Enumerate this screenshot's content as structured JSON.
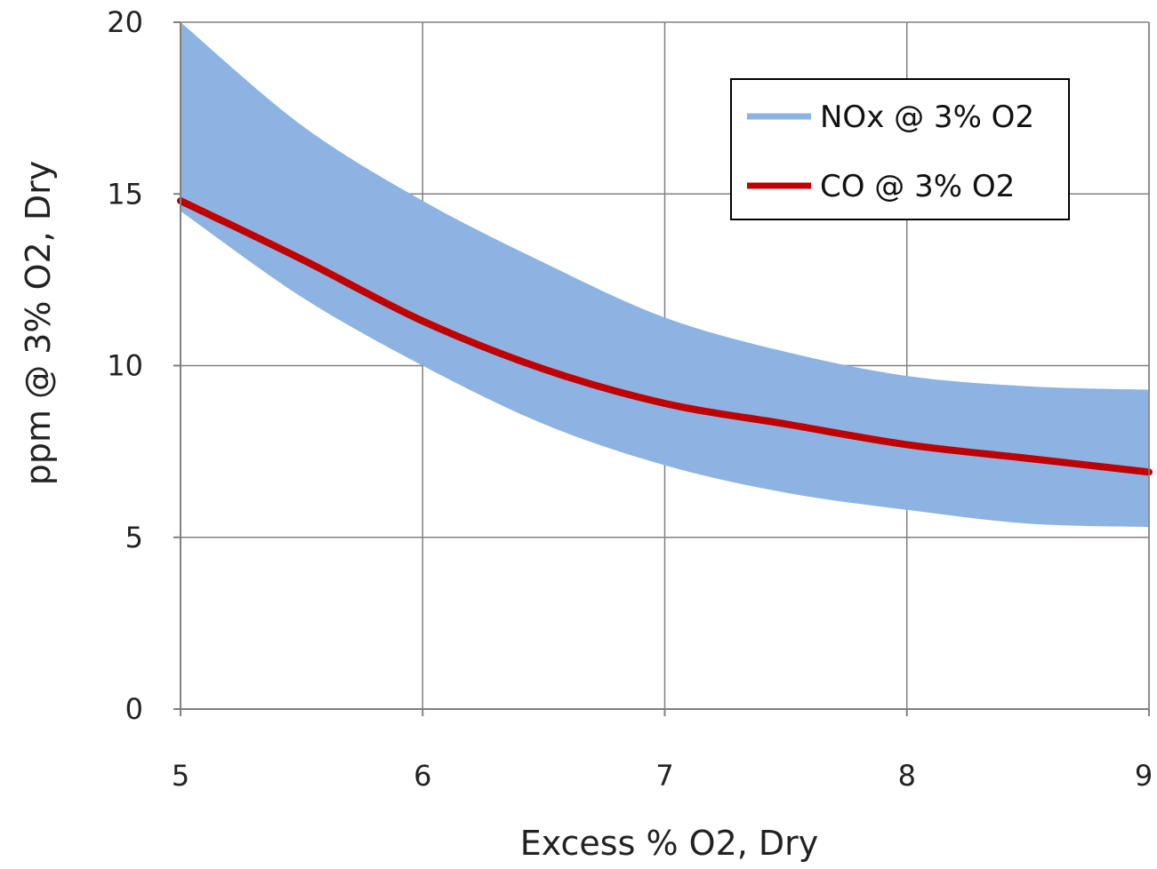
{
  "chart_data": {
    "type": "area",
    "xlabel": "Excess % O2, Dry",
    "ylabel": "ppm @ 3% O2, Dry",
    "xlim": [
      5,
      9
    ],
    "ylim": [
      0,
      20
    ],
    "x_ticks": [
      "5",
      "6",
      "7",
      "8",
      "9"
    ],
    "y_ticks": [
      "0",
      "5",
      "10",
      "15",
      "20"
    ],
    "grid": true,
    "legend_position": "top-right",
    "colors": {
      "nox_band": "#8DB3E2",
      "co_line": "#C00000",
      "grid": "#808080",
      "axis": "#808080"
    },
    "series": [
      {
        "name": "NOx @ 3% O2",
        "kind": "band",
        "x": [
          5.0,
          5.5,
          6.0,
          6.5,
          7.0,
          7.5,
          8.0,
          8.5,
          9.0
        ],
        "upper": [
          20.0,
          17.0,
          14.8,
          13.0,
          11.4,
          10.4,
          9.7,
          9.4,
          9.3
        ],
        "lower": [
          14.5,
          12.0,
          10.0,
          8.3,
          7.1,
          6.3,
          5.8,
          5.4,
          5.3
        ]
      },
      {
        "name": "CO @ 3% O2",
        "kind": "line",
        "x": [
          5.0,
          5.5,
          6.0,
          6.5,
          7.0,
          7.5,
          8.0,
          8.5,
          9.0
        ],
        "values": [
          14.8,
          13.1,
          11.3,
          9.9,
          8.9,
          8.3,
          7.7,
          7.3,
          6.9
        ]
      }
    ]
  }
}
